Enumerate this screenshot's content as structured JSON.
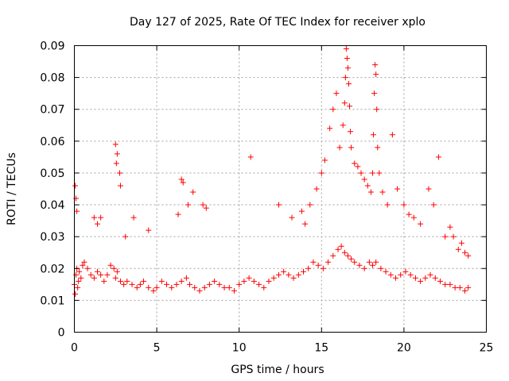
{
  "chart_data": {
    "type": "scatter",
    "title": "Day 127 of 2025, Rate Of TEC Index for receiver xplo",
    "xlabel": "GPS time / hours",
    "ylabel": "ROTI / TECUs",
    "xlim": [
      0,
      25
    ],
    "ylim": [
      0,
      0.09
    ],
    "xticks": [
      0,
      5,
      10,
      15,
      20,
      25
    ],
    "xtick_labels": [
      "0",
      "5",
      "10",
      "15",
      "20",
      "25"
    ],
    "yticks": [
      0,
      0.01,
      0.02,
      0.03,
      0.04,
      0.05,
      0.06,
      0.07,
      0.08,
      0.09
    ],
    "ytick_labels": [
      "0",
      "0.01",
      "0.02",
      "0.03",
      "0.04",
      "0.05",
      "0.06",
      "0.07",
      "0.08",
      "0.09"
    ],
    "grid": true,
    "marker": "+",
    "color": "#ff0000",
    "series": [
      {
        "name": "ROTI",
        "x": [
          0.0,
          0.05,
          0.1,
          0.15,
          0.2,
          0.25,
          0.3,
          0.4,
          0.5,
          0.6,
          0.8,
          1.0,
          1.2,
          1.4,
          1.6,
          1.8,
          2.0,
          2.2,
          2.4,
          2.5,
          2.6,
          2.8,
          3.0,
          3.2,
          3.5,
          3.8,
          4.0,
          4.2,
          4.5,
          4.8,
          5.0,
          5.3,
          5.6,
          5.9,
          6.2,
          6.5,
          6.8,
          7.0,
          7.3,
          7.6,
          7.9,
          8.2,
          8.5,
          8.8,
          9.1,
          9.4,
          9.7,
          10.0,
          10.3,
          10.6,
          10.9,
          11.2,
          11.5,
          11.8,
          12.1,
          12.4,
          12.7,
          13.0,
          13.3,
          13.6,
          13.9,
          14.2,
          14.5,
          14.8,
          15.1,
          15.4,
          15.7,
          16.0,
          16.2,
          16.4,
          16.6,
          16.8,
          17.0,
          17.3,
          17.6,
          17.9,
          18.1,
          18.3,
          18.6,
          18.9,
          19.2,
          19.5,
          19.8,
          20.1,
          20.4,
          20.7,
          21.0,
          21.3,
          21.6,
          21.9,
          22.2,
          22.5,
          22.8,
          23.1,
          23.4,
          23.7,
          23.9,
          0.05,
          0.1,
          0.15,
          1.2,
          1.4,
          1.6,
          2.5,
          2.55,
          2.6,
          2.75,
          2.8,
          3.1,
          3.6,
          4.5,
          6.3,
          6.5,
          6.6,
          6.9,
          7.2,
          7.8,
          8.0,
          10.7,
          12.4,
          13.2,
          13.8,
          14.0,
          14.3,
          14.7,
          15.0,
          15.2,
          15.5,
          15.7,
          15.9,
          16.1,
          16.3,
          16.4,
          16.45,
          16.5,
          16.55,
          16.6,
          16.65,
          16.7,
          16.75,
          16.8,
          17.0,
          17.2,
          17.4,
          17.6,
          17.8,
          18.0,
          18.1,
          18.15,
          18.2,
          18.25,
          18.3,
          18.35,
          18.4,
          18.5,
          18.7,
          19.0,
          19.3,
          19.6,
          20.0,
          20.3,
          20.6,
          21.0,
          21.5,
          21.8,
          22.1,
          22.5,
          22.8,
          23.0,
          23.3,
          23.5,
          23.7,
          23.9
        ],
        "y": [
          0.015,
          0.012,
          0.018,
          0.02,
          0.014,
          0.016,
          0.019,
          0.017,
          0.021,
          0.022,
          0.02,
          0.018,
          0.017,
          0.019,
          0.018,
          0.016,
          0.018,
          0.021,
          0.02,
          0.017,
          0.019,
          0.016,
          0.015,
          0.016,
          0.015,
          0.014,
          0.015,
          0.016,
          0.014,
          0.013,
          0.014,
          0.016,
          0.015,
          0.014,
          0.015,
          0.016,
          0.017,
          0.015,
          0.014,
          0.013,
          0.014,
          0.015,
          0.016,
          0.015,
          0.014,
          0.014,
          0.013,
          0.015,
          0.016,
          0.017,
          0.016,
          0.015,
          0.014,
          0.016,
          0.017,
          0.018,
          0.019,
          0.018,
          0.017,
          0.018,
          0.019,
          0.02,
          0.022,
          0.021,
          0.02,
          0.022,
          0.024,
          0.026,
          0.027,
          0.025,
          0.024,
          0.023,
          0.022,
          0.021,
          0.02,
          0.022,
          0.021,
          0.022,
          0.02,
          0.019,
          0.018,
          0.017,
          0.018,
          0.019,
          0.018,
          0.017,
          0.016,
          0.017,
          0.018,
          0.017,
          0.016,
          0.015,
          0.015,
          0.014,
          0.014,
          0.013,
          0.014,
          0.046,
          0.042,
          0.038,
          0.036,
          0.034,
          0.036,
          0.059,
          0.053,
          0.056,
          0.05,
          0.046,
          0.03,
          0.036,
          0.032,
          0.037,
          0.048,
          0.047,
          0.04,
          0.044,
          0.04,
          0.039,
          0.055,
          0.04,
          0.036,
          0.038,
          0.034,
          0.04,
          0.045,
          0.05,
          0.054,
          0.064,
          0.07,
          0.075,
          0.058,
          0.065,
          0.072,
          0.08,
          0.089,
          0.086,
          0.083,
          0.078,
          0.071,
          0.063,
          0.058,
          0.053,
          0.052,
          0.05,
          0.048,
          0.046,
          0.044,
          0.05,
          0.062,
          0.075,
          0.084,
          0.081,
          0.07,
          0.058,
          0.05,
          0.044,
          0.04,
          0.062,
          0.045,
          0.04,
          0.037,
          0.036,
          0.034,
          0.045,
          0.04,
          0.055,
          0.03,
          0.033,
          0.03,
          0.026,
          0.028,
          0.025,
          0.024
        ]
      }
    ]
  }
}
